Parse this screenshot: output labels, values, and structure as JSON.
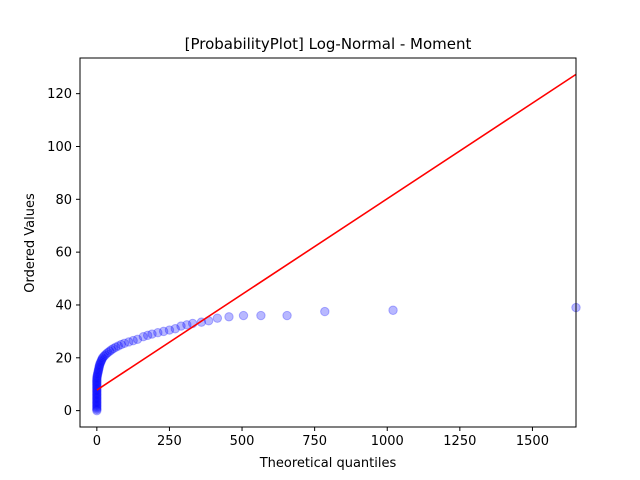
{
  "chart_data": {
    "type": "scatter",
    "title": "[ProbabilityPlot] Log-Normal - Moment",
    "xlabel": "Theoretical quantiles",
    "ylabel": "Ordered Values",
    "xlim": [
      -58,
      1650
    ],
    "ylim": [
      -6.2,
      133.5
    ],
    "xticks": [
      0,
      250,
      500,
      750,
      1000,
      1250,
      1500
    ],
    "yticks": [
      0,
      20,
      40,
      60,
      80,
      100,
      120
    ],
    "grid": false,
    "legend": "none",
    "colors": {
      "points": "#0000ff",
      "fit_line": "#ff0000"
    },
    "series": [
      {
        "kind": "points",
        "x": [
          0,
          0,
          0,
          0,
          0,
          0,
          0,
          0,
          0,
          0,
          0,
          0,
          0,
          0,
          0,
          0,
          0,
          0,
          0,
          0,
          0,
          0,
          0,
          0,
          0.2,
          0.5,
          1,
          2,
          3,
          4,
          5,
          6,
          7,
          8,
          9,
          10,
          12,
          14,
          16,
          18,
          20,
          24,
          28,
          33,
          38,
          44,
          50,
          57,
          65,
          74,
          84,
          95,
          110,
          125,
          140,
          160,
          175,
          190,
          210,
          230,
          250,
          270,
          290,
          310,
          330,
          360,
          385,
          415,
          455,
          505,
          565,
          655,
          785,
          1020,
          1650
        ],
        "y": [
          0,
          0.5,
          1,
          1.5,
          2,
          2.5,
          3,
          3.5,
          4,
          4.5,
          5,
          5.5,
          6,
          6.5,
          7,
          7.5,
          8,
          8.5,
          9,
          9.5,
          10,
          10.5,
          11,
          11.5,
          12,
          12.5,
          13,
          13.5,
          14,
          14.5,
          15,
          15.5,
          16,
          16.5,
          17,
          17.5,
          18,
          18.5,
          19,
          19.5,
          20,
          20.5,
          21,
          21.5,
          22,
          22.5,
          23,
          23.5,
          24,
          24.5,
          25,
          25.5,
          26,
          26.5,
          27,
          28,
          28.5,
          29,
          29.5,
          30,
          30.5,
          31,
          32,
          32.5,
          33,
          33.5,
          34,
          35,
          35.5,
          36,
          36,
          36,
          37.5,
          38,
          39
        ]
      },
      {
        "kind": "line",
        "x": [
          0,
          1650
        ],
        "y": [
          7.8,
          127.3
        ]
      }
    ]
  }
}
